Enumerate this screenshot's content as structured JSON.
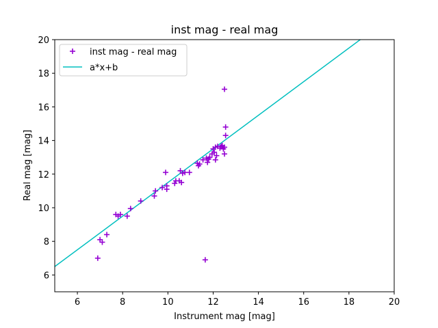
{
  "chart_data": {
    "type": "scatter",
    "title": "inst mag - real mag",
    "xlabel": "Instrument mag [mag]",
    "ylabel": "Real mag [mag]",
    "xlim": [
      5,
      20
    ],
    "ylim": [
      5,
      20
    ],
    "xticks": [
      6,
      8,
      10,
      12,
      14,
      16,
      18,
      20
    ],
    "yticks": [
      6,
      8,
      10,
      12,
      14,
      16,
      18,
      20
    ],
    "grid": false,
    "legend_position": "top-left",
    "series": [
      {
        "name": "inst mag - real mag",
        "kind": "scatter",
        "marker": "+",
        "color": "#9400D3",
        "points": [
          [
            6.9,
            7.0
          ],
          [
            7.0,
            8.1
          ],
          [
            7.1,
            7.95
          ],
          [
            7.3,
            8.4
          ],
          [
            7.7,
            9.6
          ],
          [
            7.8,
            9.5
          ],
          [
            7.9,
            9.6
          ],
          [
            8.2,
            9.5
          ],
          [
            8.35,
            9.95
          ],
          [
            8.8,
            10.4
          ],
          [
            9.4,
            10.7
          ],
          [
            9.45,
            11.0
          ],
          [
            9.75,
            11.2
          ],
          [
            9.9,
            12.1
          ],
          [
            9.95,
            11.1
          ],
          [
            9.95,
            11.3
          ],
          [
            10.3,
            11.45
          ],
          [
            10.35,
            11.6
          ],
          [
            10.5,
            11.6
          ],
          [
            10.55,
            12.2
          ],
          [
            10.6,
            11.5
          ],
          [
            10.65,
            12.05
          ],
          [
            10.75,
            12.1
          ],
          [
            10.95,
            12.1
          ],
          [
            11.3,
            12.65
          ],
          [
            11.35,
            12.5
          ],
          [
            11.4,
            12.6
          ],
          [
            11.55,
            12.85
          ],
          [
            11.65,
            6.9
          ],
          [
            11.7,
            12.95
          ],
          [
            11.75,
            12.7
          ],
          [
            11.8,
            12.9
          ],
          [
            11.85,
            13.0
          ],
          [
            11.95,
            13.2
          ],
          [
            12.0,
            13.5
          ],
          [
            12.05,
            13.3
          ],
          [
            12.1,
            13.6
          ],
          [
            12.1,
            12.85
          ],
          [
            12.15,
            13.1
          ],
          [
            12.2,
            13.65
          ],
          [
            12.3,
            13.55
          ],
          [
            12.35,
            13.65
          ],
          [
            12.4,
            13.7
          ],
          [
            12.45,
            13.5
          ],
          [
            12.5,
            13.6
          ],
          [
            12.5,
            13.2
          ],
          [
            12.5,
            17.05
          ],
          [
            12.55,
            14.3
          ],
          [
            12.55,
            14.8
          ]
        ]
      },
      {
        "name": "a*x+b",
        "kind": "line",
        "color": "#00BFBF",
        "a": 1.0,
        "b": 1.5
      }
    ]
  }
}
